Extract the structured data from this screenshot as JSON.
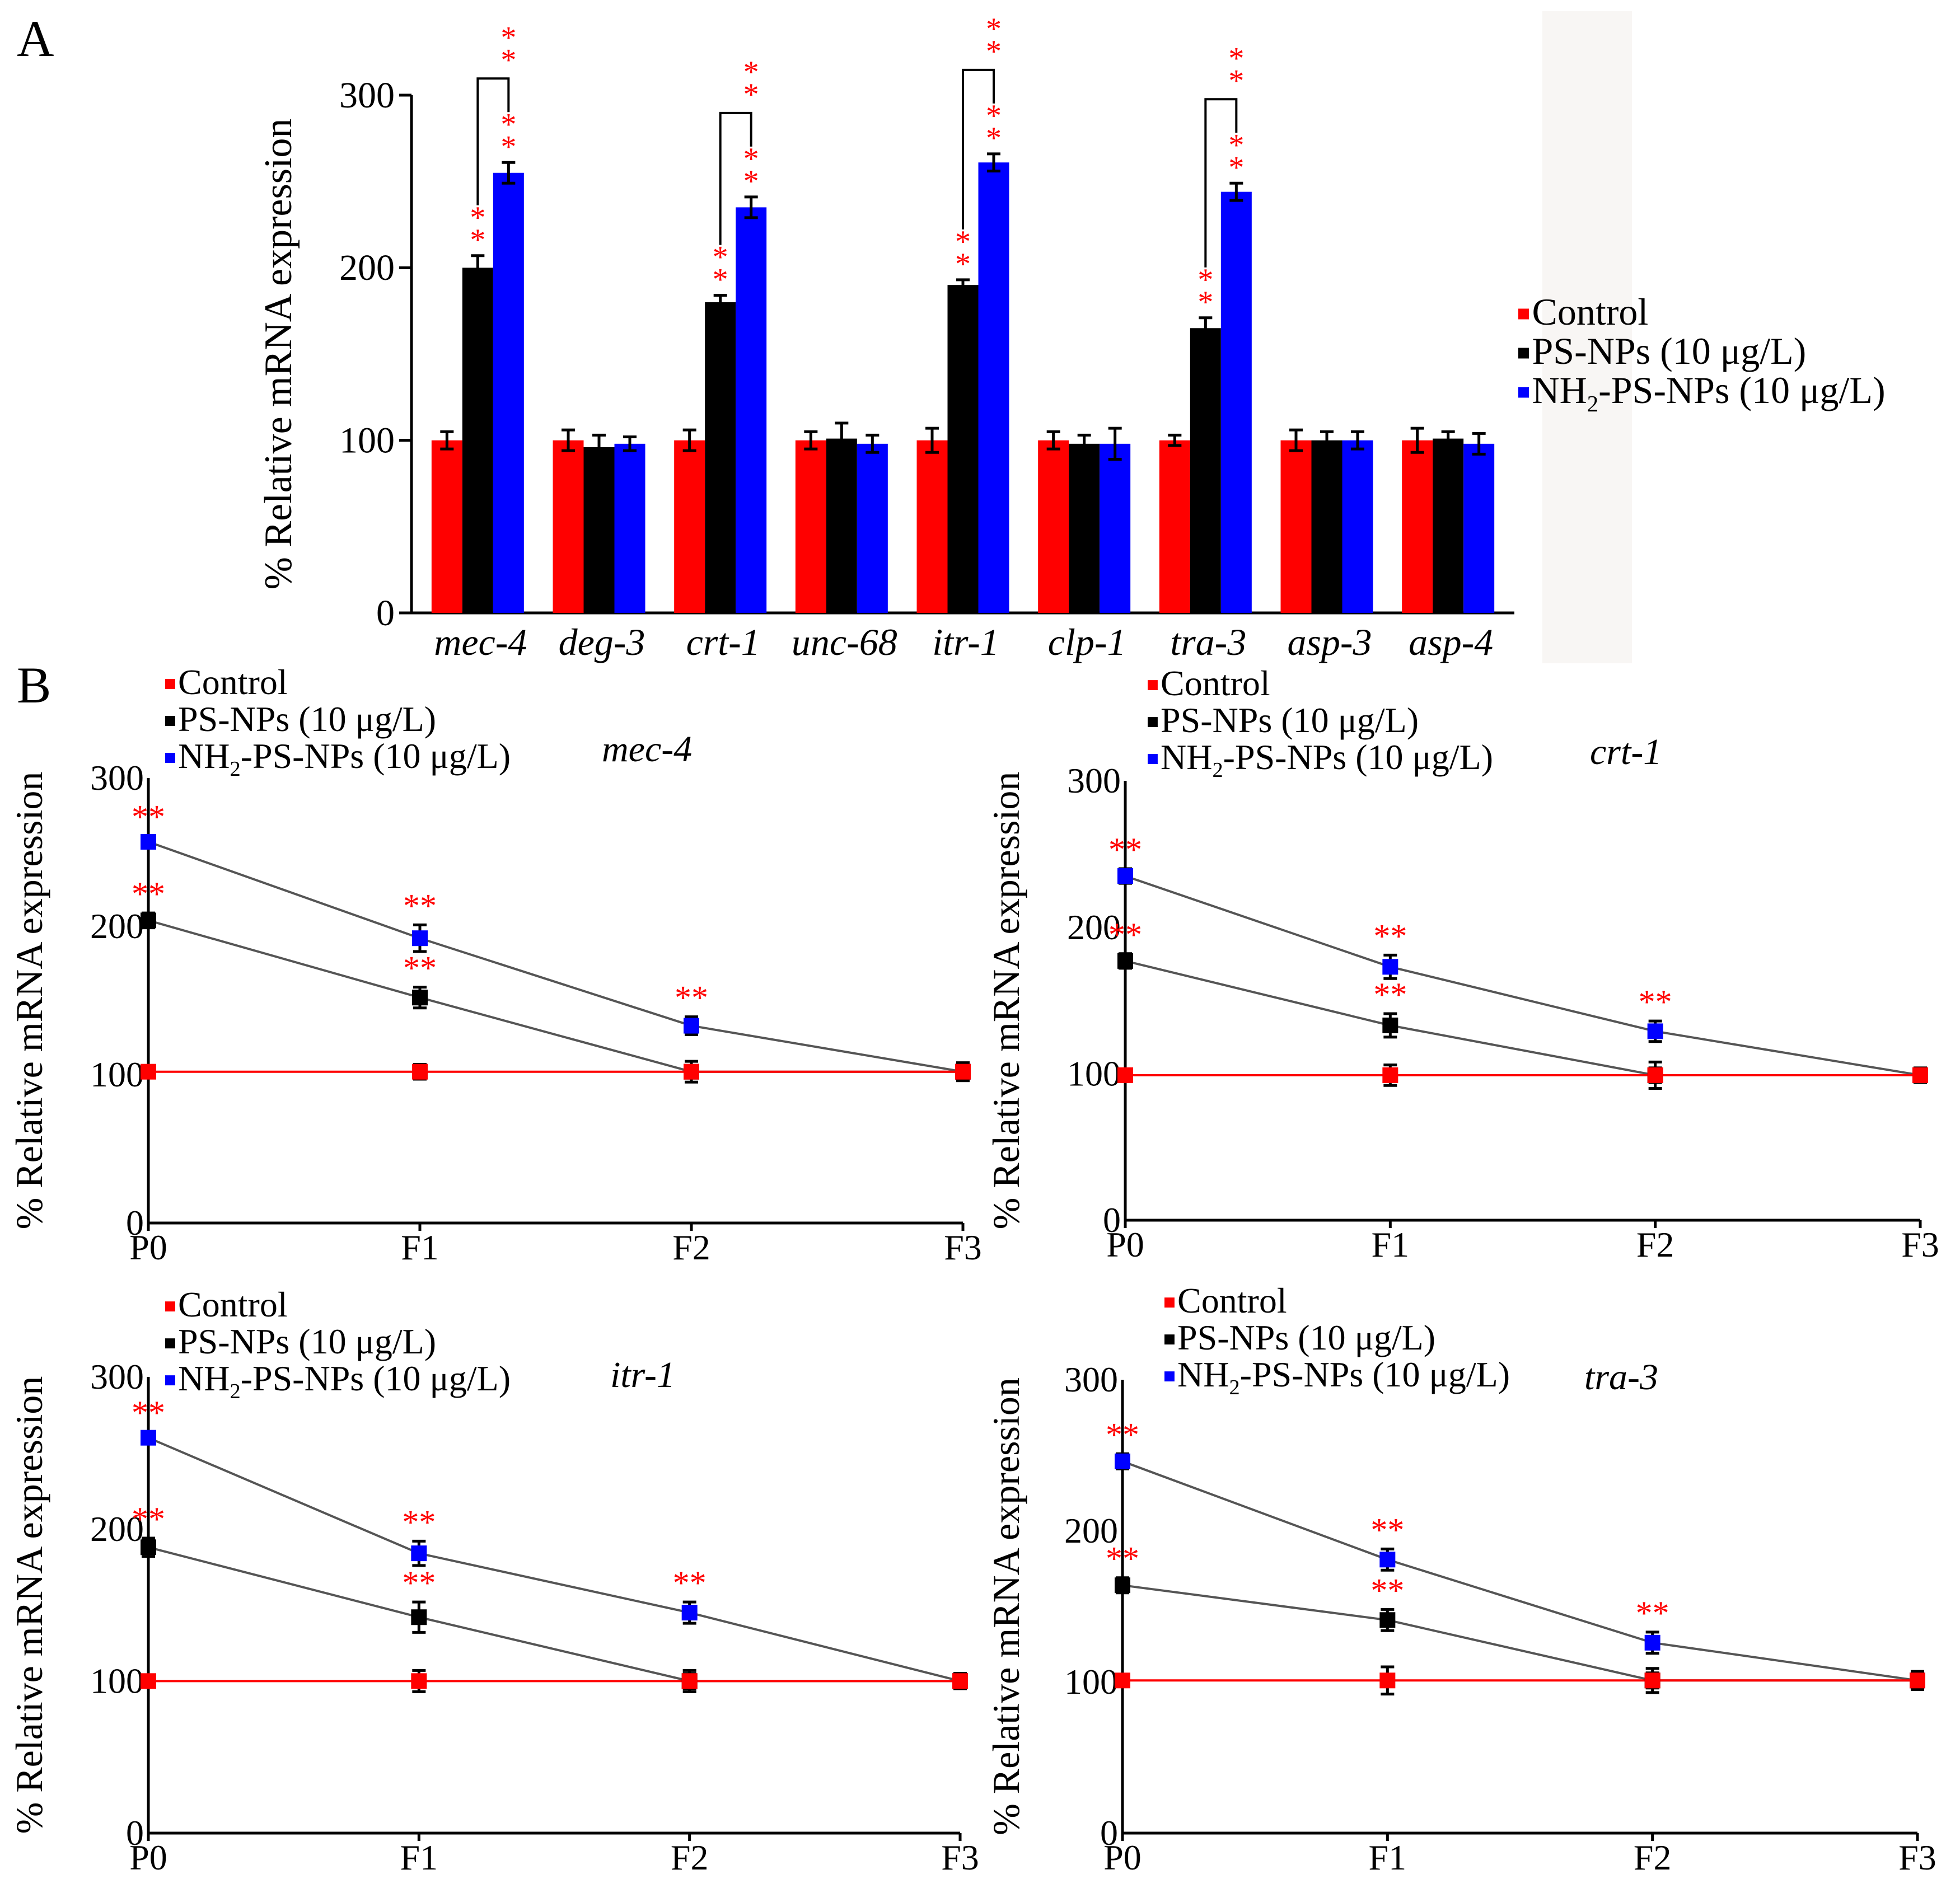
{
  "figure": {
    "panel_a_label": "A",
    "panel_b_label": "B"
  },
  "colors": {
    "control": "#ff0000",
    "ps": "#000000",
    "nh2": "#0000ff",
    "sig": "#ff0000",
    "line": "#555555"
  },
  "legend": {
    "control": "Control",
    "ps": "PS-NPs (10 μg/L)",
    "nh2_prefix": "NH",
    "nh2_sub": "2",
    "nh2_suffix": "-PS-NPs (10 μg/L)"
  },
  "sig_marker": "**",
  "chart_data": [
    {
      "type": "bar",
      "panel": "A",
      "ylabel": "% Relative mRNA expression",
      "ylim": [
        0,
        300
      ],
      "yticks": [
        0,
        100,
        200,
        300
      ],
      "categories": [
        "mec-4",
        "deg-3",
        "crt-1",
        "unc-68",
        "itr-1",
        "clp-1",
        "tra-3",
        "asp-3",
        "asp-4"
      ],
      "series": [
        {
          "name": "Control",
          "values": [
            100,
            100,
            100,
            100,
            100,
            100,
            100,
            100,
            100
          ],
          "errors": [
            5,
            6,
            6,
            5,
            7,
            5,
            3,
            6,
            7
          ]
        },
        {
          "name": "PS-NPs (10 μg/L)",
          "values": [
            200,
            96,
            180,
            101,
            190,
            98,
            165,
            100,
            101
          ],
          "errors": [
            7,
            7,
            4,
            9,
            3,
            5,
            6,
            5,
            4
          ]
        },
        {
          "name": "NH2-PS-NPs (10 μg/L)",
          "values": [
            255,
            98,
            235,
            98,
            261,
            98,
            244,
            100,
            98
          ],
          "errors": [
            6,
            4,
            6,
            5,
            5,
            9,
            5,
            5,
            6
          ]
        }
      ],
      "significance": [
        {
          "category": "mec-4",
          "series": [
            1,
            2
          ],
          "bracket": true
        },
        {
          "category": "crt-1",
          "series": [
            1,
            2
          ],
          "bracket": true
        },
        {
          "category": "itr-1",
          "series": [
            1,
            2
          ],
          "bracket": true
        },
        {
          "category": "tra-3",
          "series": [
            1,
            2
          ],
          "bracket": true
        }
      ]
    },
    {
      "type": "line",
      "panel": "B1",
      "gene": "mec-4",
      "ylabel": "% Relative mRNA expression",
      "ylim": [
        0,
        300
      ],
      "yticks": [
        0,
        100,
        200,
        300
      ],
      "x": [
        "P0",
        "F1",
        "F2",
        "F3"
      ],
      "series": [
        {
          "name": "Control",
          "values": [
            102,
            102,
            102,
            102
          ],
          "errors": [
            4,
            5,
            4,
            6
          ]
        },
        {
          "name": "PS-NPs (10 μg/L)",
          "values": [
            204,
            152,
            102,
            102
          ],
          "errors": [
            5,
            7,
            7,
            6
          ]
        },
        {
          "name": "NH2-PS-NPs (10 μg/L)",
          "values": [
            257,
            192,
            133,
            102
          ],
          "errors": [
            4,
            9,
            6,
            4
          ]
        }
      ],
      "sig_points": [
        [
          1,
          0
        ],
        [
          1,
          1
        ],
        [
          2,
          0
        ],
        [
          2,
          1
        ],
        [
          2,
          2
        ]
      ]
    },
    {
      "type": "line",
      "panel": "B2",
      "gene": "crt-1",
      "ylabel": "% Relative mRNA expression",
      "ylim": [
        0,
        300
      ],
      "yticks": [
        0,
        100,
        200,
        300
      ],
      "x": [
        "P0",
        "F1",
        "F2",
        "F3"
      ],
      "series": [
        {
          "name": "Control",
          "values": [
            99,
            99,
            99,
            99
          ],
          "errors": [
            4,
            7,
            5,
            4
          ]
        },
        {
          "name": "PS-NPs (10 μg/L)",
          "values": [
            177,
            133,
            99,
            99
          ],
          "errors": [
            5,
            8,
            9,
            5
          ]
        },
        {
          "name": "NH2-PS-NPs (10 μg/L)",
          "values": [
            235,
            173,
            129,
            99
          ],
          "errors": [
            5,
            8,
            7,
            4
          ]
        }
      ],
      "sig_points": [
        [
          1,
          0
        ],
        [
          1,
          1
        ],
        [
          2,
          0
        ],
        [
          2,
          1
        ],
        [
          2,
          2
        ]
      ]
    },
    {
      "type": "line",
      "panel": "B3",
      "gene": "itr-1",
      "ylabel": "% Relative mRNA expression",
      "ylim": [
        0,
        300
      ],
      "yticks": [
        0,
        100,
        200,
        300
      ],
      "x": [
        "P0",
        "F1",
        "F2",
        "F3"
      ],
      "series": [
        {
          "name": "Control",
          "values": [
            100,
            100,
            100,
            100
          ],
          "errors": [
            4,
            7,
            5,
            5
          ]
        },
        {
          "name": "PS-NPs (10 μg/L)",
          "values": [
            188,
            142,
            100,
            100
          ],
          "errors": [
            6,
            10,
            7,
            5
          ]
        },
        {
          "name": "NH2-PS-NPs (10 μg/L)",
          "values": [
            260,
            184,
            145,
            100
          ],
          "errors": [
            4,
            8,
            7,
            4
          ]
        }
      ],
      "sig_points": [
        [
          1,
          0
        ],
        [
          1,
          1
        ],
        [
          2,
          0
        ],
        [
          2,
          1
        ],
        [
          2,
          2
        ]
      ]
    },
    {
      "type": "line",
      "panel": "B4",
      "gene": "tra-3",
      "ylabel": "% Relative mRNA expression",
      "ylim": [
        0,
        300
      ],
      "yticks": [
        0,
        100,
        200,
        300
      ],
      "x": [
        "P0",
        "F1",
        "F2",
        "F3"
      ],
      "series": [
        {
          "name": "Control",
          "values": [
            101,
            101,
            101,
            101
          ],
          "errors": [
            4,
            9,
            5,
            6
          ]
        },
        {
          "name": "PS-NPs (10 μg/L)",
          "values": [
            164,
            141,
            101,
            101
          ],
          "errors": [
            5,
            7,
            8,
            5
          ]
        },
        {
          "name": "NH2-PS-NPs (10 μg/L)",
          "values": [
            246,
            181,
            126,
            101
          ],
          "errors": [
            5,
            7,
            7,
            5
          ]
        }
      ],
      "sig_points": [
        [
          1,
          0
        ],
        [
          1,
          1
        ],
        [
          2,
          0
        ],
        [
          2,
          1
        ],
        [
          2,
          2
        ]
      ]
    }
  ]
}
